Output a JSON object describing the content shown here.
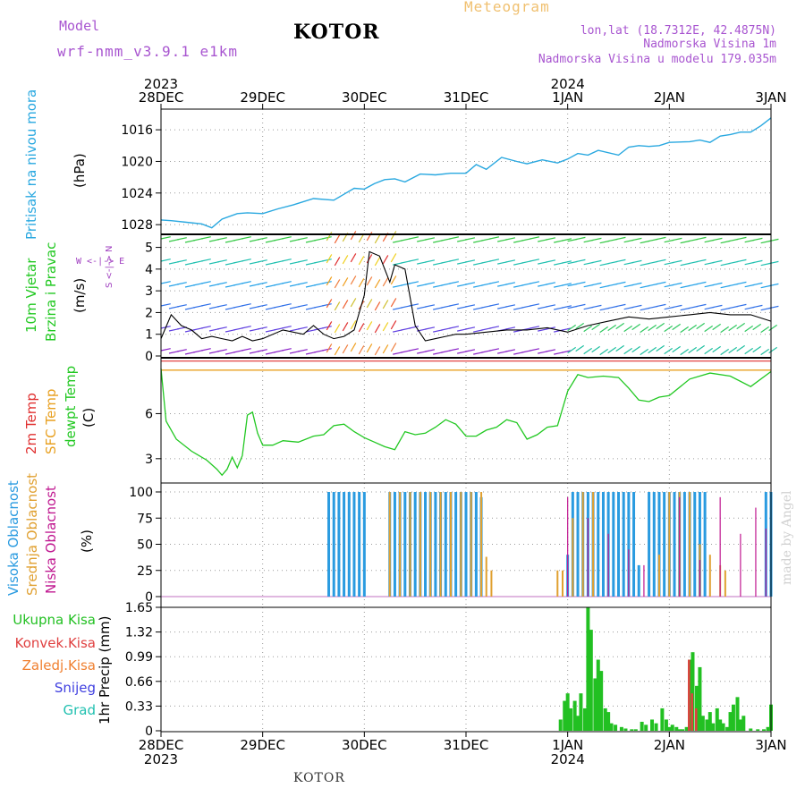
{
  "header": {
    "model_label": "Model",
    "model_name": "wrf-nmm_v3.9.1  e1km",
    "station": "KOTOR",
    "meteogram": "Meteogram",
    "lonlat": "lon,lat (18.7312E, 42.4875N)",
    "altitude": "Nadmorska Visina 1m",
    "model_altitude": "Nadmorska Visina u modelu 179.035m"
  },
  "footer": {
    "station": "KOTOR",
    "credit": "made by Angel"
  },
  "colors": {
    "pressure": "#29a8e0",
    "dewpoint": "#22c822",
    "t2m": "#e03030",
    "sfc": "#e8a020",
    "high_cloud": "#2a9be0",
    "mid_cloud": "#e0a030",
    "low_cloud": "#c01890",
    "precip_total": "#22c022",
    "precip_conv": "#e04040",
    "wind_label": "#a040c0"
  },
  "time_axis": {
    "top_years": [
      {
        "day": 0,
        "label": "2023"
      },
      {
        "day": 4,
        "label": "2024"
      }
    ],
    "bottom_years": [
      {
        "day": 0,
        "label": "2023"
      },
      {
        "day": 4,
        "label": "2024"
      }
    ],
    "ticks": [
      {
        "day": 0,
        "label": "28DEC"
      },
      {
        "day": 1,
        "label": "29DEC"
      },
      {
        "day": 2,
        "label": "30DEC"
      },
      {
        "day": 3,
        "label": "31DEC"
      },
      {
        "day": 4,
        "label": "1JAN"
      },
      {
        "day": 5,
        "label": "2JAN"
      },
      {
        "day": 6,
        "label": "3JAN"
      }
    ]
  },
  "panels": {
    "pressure": {
      "labels": [
        "Pritisak na nivou mora"
      ],
      "unit": "(hPa)"
    },
    "wind": {
      "labels": [
        "10m Vjetar",
        "Brzina i Pravac"
      ],
      "unit": "(m/s)",
      "compass": "W <-|-> E",
      "compass_ns": "S <-|-> N"
    },
    "temp": {
      "labels": [
        "2m Temp",
        "SFC Temp",
        "dewpt Temp"
      ],
      "unit": "(C)"
    },
    "cloud": {
      "labels": [
        "Visoka Oblacnost",
        "Srednja Oblacnost",
        "Niska Oblacnost"
      ],
      "unit": "(%)"
    },
    "precip": {
      "legend": [
        "Ukupna Kisa",
        "Konvek.Kisa",
        "Zaledj.Kisa",
        "Snijeg",
        "Grad"
      ],
      "unit": "1hr Precip (mm)"
    }
  },
  "chart_data": [
    {
      "type": "line",
      "title": "Pritisak na nivou mora",
      "ylabel": "(hPa)",
      "ylim": [
        1013.5,
        1029
      ],
      "yticks": [
        1016,
        1020,
        1024,
        1028
      ],
      "grid": true,
      "series": [
        {
          "name": "Pritisak na nivou mora",
          "x": [
            0,
            0.1,
            0.25,
            0.4,
            0.5,
            0.6,
            0.75,
            0.85,
            1.0,
            1.15,
            1.3,
            1.5,
            1.7,
            1.9,
            2.0,
            2.1,
            2.2,
            2.3,
            2.4,
            2.55,
            2.7,
            2.85,
            3.0,
            3.1,
            3.2,
            3.35,
            3.5,
            3.6,
            3.75,
            3.9,
            4.0,
            4.1,
            4.2,
            4.3,
            4.5,
            4.6,
            4.7,
            4.8,
            4.9,
            5.0,
            5.2,
            5.3,
            5.4,
            5.5,
            5.6,
            5.7,
            5.8,
            5.9,
            6.0
          ],
          "values": [
            1027.4,
            1027.5,
            1027.7,
            1027.9,
            1028.4,
            1027.3,
            1026.6,
            1026.5,
            1026.6,
            1026.0,
            1025.5,
            1024.7,
            1024.9,
            1023.4,
            1023.5,
            1022.8,
            1022.3,
            1022.2,
            1022.6,
            1021.6,
            1021.7,
            1021.5,
            1021.5,
            1020.4,
            1021.0,
            1019.5,
            1020.0,
            1020.3,
            1019.8,
            1020.2,
            1019.7,
            1019.0,
            1019.2,
            1018.6,
            1019.2,
            1018.2,
            1018.0,
            1018.1,
            1018.0,
            1017.6,
            1017.5,
            1017.3,
            1017.6,
            1016.8,
            1016.6,
            1016.3,
            1016.3,
            1015.5,
            1014.5
          ]
        }
      ]
    },
    {
      "type": "line",
      "title": "10m Vjetar Brzina i Pravac",
      "ylabel": "(m/s)",
      "ylim": [
        0,
        5.6
      ],
      "yticks": [
        0,
        1,
        2,
        3,
        4,
        5
      ],
      "grid": true,
      "series": [
        {
          "name": "10m Vjetar",
          "x": [
            0,
            0.1,
            0.2,
            0.3,
            0.4,
            0.5,
            0.6,
            0.7,
            0.8,
            0.9,
            1.0,
            1.2,
            1.4,
            1.5,
            1.6,
            1.7,
            1.8,
            1.9,
            2.0,
            2.05,
            2.15,
            2.25,
            2.3,
            2.4,
            2.5,
            2.6,
            2.7,
            2.8,
            2.9,
            3.0,
            3.2,
            3.4,
            3.6,
            3.8,
            4.0,
            4.2,
            4.4,
            4.6,
            4.8,
            5.0,
            5.2,
            5.4,
            5.6,
            5.8,
            6.0
          ],
          "values": [
            0.8,
            1.9,
            1.4,
            1.2,
            0.8,
            0.9,
            0.8,
            0.7,
            0.9,
            0.7,
            0.8,
            1.2,
            1.0,
            1.4,
            1.0,
            0.8,
            0.9,
            1.2,
            2.8,
            4.8,
            4.6,
            3.4,
            4.2,
            4.0,
            1.4,
            0.7,
            0.8,
            0.9,
            1.0,
            1.0,
            1.1,
            1.2,
            1.2,
            1.3,
            1.1,
            1.4,
            1.6,
            1.8,
            1.7,
            1.8,
            1.9,
            2.0,
            1.9,
            1.9,
            1.6
          ]
        }
      ]
    },
    {
      "type": "line",
      "title": "2m Temp / SFC Temp / dewpt Temp",
      "ylabel": "(C)",
      "ylim": [
        1.5,
        9.6
      ],
      "yticks": [
        3,
        6
      ],
      "grid": true,
      "series": [
        {
          "name": "2m Temp",
          "x": [
            0,
            6
          ],
          "values": [
            9.5,
            9.5
          ]
        },
        {
          "name": "SFC Temp",
          "x": [
            0,
            6
          ],
          "values": [
            8.9,
            8.9
          ]
        },
        {
          "name": "dewpt Temp",
          "x": [
            0,
            0.05,
            0.15,
            0.3,
            0.45,
            0.55,
            0.6,
            0.65,
            0.7,
            0.75,
            0.8,
            0.85,
            0.9,
            0.95,
            1.0,
            1.1,
            1.2,
            1.35,
            1.5,
            1.6,
            1.7,
            1.8,
            1.9,
            2.0,
            2.1,
            2.2,
            2.3,
            2.4,
            2.5,
            2.6,
            2.7,
            2.8,
            2.9,
            3.0,
            3.1,
            3.2,
            3.3,
            3.4,
            3.5,
            3.6,
            3.7,
            3.8,
            3.9,
            4.0,
            4.1,
            4.2,
            4.35,
            4.5,
            4.6,
            4.7,
            4.8,
            4.9,
            5.0,
            5.2,
            5.4,
            5.6,
            5.8,
            6.0
          ],
          "values": [
            9.0,
            5.5,
            4.3,
            3.5,
            2.9,
            2.3,
            1.9,
            2.3,
            3.1,
            2.4,
            3.2,
            5.9,
            6.1,
            4.7,
            3.9,
            3.9,
            4.2,
            4.1,
            4.5,
            4.6,
            5.2,
            5.3,
            4.8,
            4.4,
            4.1,
            3.8,
            3.6,
            4.8,
            4.6,
            4.7,
            5.1,
            5.6,
            5.3,
            4.5,
            4.5,
            4.9,
            5.1,
            5.6,
            5.4,
            4.3,
            4.6,
            5.1,
            5.2,
            7.5,
            8.6,
            8.4,
            8.5,
            8.4,
            7.7,
            6.9,
            6.8,
            7.1,
            7.2,
            8.3,
            8.7,
            8.5,
            7.8,
            8.8
          ]
        }
      ]
    },
    {
      "type": "bar",
      "title": "Visoka / Srednja / Niska Oblacnost",
      "ylabel": "(%)",
      "ylim": [
        0,
        100
      ],
      "yticks": [
        0,
        25,
        50,
        75,
        100
      ],
      "grid": true,
      "series": [
        {
          "name": "Visoka Oblacnost",
          "x": [
            1.65,
            1.7,
            1.75,
            1.8,
            1.85,
            1.9,
            1.95,
            2.0,
            2.25,
            2.3,
            2.35,
            2.4,
            2.45,
            2.5,
            2.55,
            2.6,
            2.65,
            2.7,
            2.75,
            2.8,
            2.85,
            2.9,
            2.95,
            3.0,
            3.05,
            3.1,
            3.15,
            4.0,
            4.05,
            4.1,
            4.15,
            4.2,
            4.25,
            4.3,
            4.35,
            4.4,
            4.45,
            4.5,
            4.55,
            4.6,
            4.65,
            4.7,
            4.8,
            4.85,
            4.9,
            4.95,
            5.0,
            5.05,
            5.1,
            5.15,
            5.2,
            5.25,
            5.3,
            5.35,
            5.95,
            6.0
          ],
          "values": [
            100,
            100,
            100,
            100,
            100,
            100,
            100,
            100,
            100,
            100,
            100,
            100,
            100,
            100,
            100,
            100,
            100,
            100,
            100,
            100,
            100,
            100,
            100,
            100,
            100,
            100,
            95,
            40,
            100,
            100,
            100,
            100,
            100,
            100,
            100,
            100,
            100,
            100,
            100,
            100,
            100,
            30,
            100,
            100,
            100,
            100,
            100,
            100,
            100,
            100,
            100,
            100,
            100,
            100,
            100,
            100
          ]
        },
        {
          "name": "Srednja Oblacnost",
          "x": [
            2.25,
            2.35,
            2.45,
            2.55,
            2.65,
            2.75,
            2.85,
            2.95,
            3.05,
            3.15,
            3.2,
            3.25,
            3.9,
            3.95,
            4.05,
            4.15,
            4.25,
            4.9,
            5.0,
            5.1,
            5.2,
            5.3,
            5.4,
            5.5,
            5.55
          ],
          "values": [
            100,
            100,
            100,
            100,
            100,
            100,
            100,
            100,
            100,
            100,
            38,
            25,
            25,
            25,
            75,
            100,
            100,
            40,
            100,
            100,
            100,
            50,
            40,
            30,
            25
          ]
        },
        {
          "name": "Niska Oblacnost",
          "x": [
            4.0,
            4.2,
            4.4,
            4.6,
            4.75,
            5.1,
            5.3,
            5.5,
            5.7,
            5.85,
            5.95
          ],
          "values": [
            95,
            75,
            60,
            45,
            30,
            95,
            35,
            95,
            60,
            85,
            65
          ]
        }
      ]
    },
    {
      "type": "bar",
      "title": "1hr Precip",
      "ylabel": "1hr Precip (mm)",
      "ylim": [
        0,
        1.65
      ],
      "yticks": [
        0,
        0.33,
        0.66,
        0.99,
        1.32,
        1.65
      ],
      "grid": true,
      "series": [
        {
          "name": "Ukupna Kisa",
          "x": [
            3.93,
            3.97,
            4.0,
            4.03,
            4.07,
            4.1,
            4.13,
            4.17,
            4.2,
            4.23,
            4.27,
            4.3,
            4.33,
            4.37,
            4.4,
            4.43,
            4.47,
            4.53,
            4.57,
            4.63,
            4.67,
            4.73,
            4.77,
            4.83,
            4.87,
            4.93,
            4.97,
            5.0,
            5.03,
            5.07,
            5.1,
            5.13,
            5.17,
            5.2,
            5.23,
            5.27,
            5.3,
            5.33,
            5.37,
            5.4,
            5.43,
            5.47,
            5.5,
            5.53,
            5.57,
            5.6,
            5.63,
            5.67,
            5.7,
            5.73,
            5.8,
            5.87,
            5.93,
            5.97,
            6.0
          ],
          "values": [
            0.15,
            0.4,
            0.5,
            0.3,
            0.4,
            0.2,
            0.5,
            0.3,
            1.65,
            1.35,
            0.7,
            0.95,
            0.8,
            0.3,
            0.25,
            0.1,
            0.08,
            0.05,
            0.03,
            0.02,
            0.02,
            0.12,
            0.08,
            0.15,
            0.1,
            0.3,
            0.15,
            0.05,
            0.08,
            0.05,
            0.02,
            0.02,
            0.05,
            0.95,
            1.05,
            0.6,
            0.85,
            0.2,
            0.15,
            0.25,
            0.1,
            0.3,
            0.15,
            0.1,
            0.05,
            0.25,
            0.35,
            0.45,
            0.15,
            0.2,
            0.03,
            0.02,
            0.02,
            0.05,
            0.35
          ]
        },
        {
          "name": "Konvek.Kisa",
          "x": [
            5.2,
            5.23,
            5.27
          ],
          "values": [
            0.95,
            0.5,
            0.3
          ]
        }
      ]
    }
  ]
}
